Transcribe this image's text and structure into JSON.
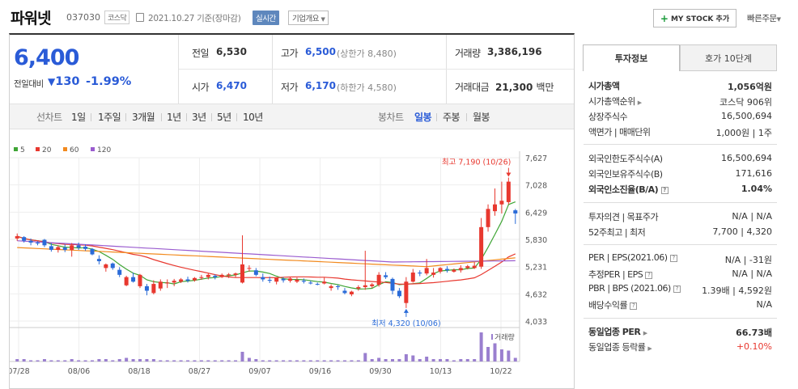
{
  "header": {
    "name": "파워넷",
    "code": "037030",
    "market": "코스닥",
    "date": "2021.10.27 기준(장마감)",
    "realtime_label": "실시간",
    "company_label": "기업개요",
    "mystock_label": "MY STOCK 추가",
    "quick_order_label": "빠른주문"
  },
  "price": {
    "current": "6,400",
    "prev_label": "전일대비",
    "change": "130",
    "change_pct": "-1.99%"
  },
  "quote": {
    "prev_close_label": "전일",
    "prev_close": "6,530",
    "high_label": "고가",
    "high": "6,500",
    "upper_limit": "(상한가 8,480)",
    "volume_label": "거래량",
    "volume": "3,386,196",
    "open_label": "시가",
    "open": "6,470",
    "low_label": "저가",
    "low": "6,170",
    "lower_limit": "(하한가 4,580)",
    "amount_label": "거래대금",
    "amount": "21,300",
    "amount_unit": "백만"
  },
  "tabs": {
    "line_label": "선차트",
    "periods": [
      "1일",
      "1주일",
      "3개월",
      "1년",
      "3년",
      "5년",
      "10년"
    ],
    "candle_label": "봉차트",
    "candles": [
      "일봉",
      "주봉",
      "월봉"
    ],
    "active_candle": "일봉"
  },
  "chart_data": {
    "type": "candlestick",
    "legend": [
      {
        "name": "5",
        "color": "#3fa535"
      },
      {
        "name": "20",
        "color": "#e8382f"
      },
      {
        "name": "60",
        "color": "#f28a1e"
      },
      {
        "name": "120",
        "color": "#9a5ccf"
      }
    ],
    "y_ticks": [
      "7,627",
      "7,028",
      "6,429",
      "5,830",
      "5,231",
      "4,632",
      "4,033"
    ],
    "ylim": [
      4033,
      7627
    ],
    "x_ticks": [
      "07/28",
      "08/06",
      "08/18",
      "08/27",
      "09/07",
      "09/16",
      "09/30",
      "10/13",
      "10/22"
    ],
    "volume_label": "거래량",
    "high_annotation": "최고 7,190 (10/26)",
    "low_annotation": "최저 4,320 (10/06)",
    "candles": [
      [
        5850,
        5960,
        5800,
        5900
      ],
      [
        5880,
        5900,
        5760,
        5800
      ],
      [
        5800,
        5850,
        5700,
        5760
      ],
      [
        5760,
        5790,
        5700,
        5740
      ],
      [
        5820,
        5840,
        5660,
        5700
      ],
      [
        5680,
        5750,
        5560,
        5600
      ],
      [
        5600,
        5700,
        5540,
        5660
      ],
      [
        5650,
        5720,
        5550,
        5600
      ],
      [
        5600,
        5750,
        5450,
        5700
      ],
      [
        5700,
        5760,
        5600,
        5650
      ],
      [
        5670,
        5720,
        5580,
        5620
      ],
      [
        5620,
        5640,
        5480,
        5500
      ],
      [
        5400,
        5480,
        5280,
        5350
      ],
      [
        5200,
        5300,
        5120,
        5280
      ],
      [
        5300,
        5320,
        5160,
        5200
      ],
      [
        5160,
        5220,
        5000,
        5050
      ],
      [
        4820,
        5030,
        4800,
        5000
      ],
      [
        5000,
        5100,
        4880,
        4900
      ],
      [
        4800,
        5070,
        4760,
        5050
      ],
      [
        4800,
        4850,
        4600,
        4700
      ],
      [
        4650,
        4930,
        4620,
        4850
      ],
      [
        4750,
        4950,
        4700,
        4900
      ],
      [
        4860,
        4950,
        4760,
        4880
      ],
      [
        4880,
        4960,
        4800,
        4920
      ],
      [
        4900,
        4980,
        4870,
        4950
      ],
      [
        4950,
        5010,
        4880,
        4920
      ],
      [
        4930,
        5000,
        4900,
        4980
      ],
      [
        4980,
        5050,
        4940,
        5000
      ],
      [
        5000,
        5080,
        4950,
        5050
      ],
      [
        5030,
        5060,
        4950,
        5000
      ],
      [
        5000,
        5080,
        4980,
        5050
      ],
      [
        5040,
        5090,
        4980,
        5060
      ],
      [
        5050,
        5100,
        5000,
        5080
      ],
      [
        4880,
        5920,
        4860,
        5280
      ],
      [
        5200,
        5260,
        5120,
        5200
      ],
      [
        5150,
        5200,
        5020,
        5050
      ],
      [
        5000,
        5080,
        4900,
        4950
      ],
      [
        4940,
        5010,
        4870,
        4920
      ],
      [
        4900,
        4990,
        4840,
        4980
      ],
      [
        4960,
        5000,
        4880,
        4930
      ],
      [
        4920,
        5000,
        4880,
        4970
      ],
      [
        4900,
        4990,
        4870,
        4940
      ],
      [
        4920,
        4970,
        4860,
        4900
      ],
      [
        4880,
        4920,
        4840,
        4860
      ],
      [
        4850,
        4880,
        4820,
        4840
      ],
      [
        4860,
        4990,
        4840,
        4900
      ],
      [
        4760,
        4840,
        4700,
        4800
      ],
      [
        4800,
        4830,
        4720,
        4780
      ],
      [
        4700,
        4760,
        4620,
        4650
      ],
      [
        4620,
        4700,
        4580,
        4680
      ],
      [
        4750,
        4820,
        4700,
        4780
      ],
      [
        4780,
        5580,
        4720,
        4820
      ],
      [
        4800,
        4870,
        4760,
        4840
      ],
      [
        4830,
        5110,
        4790,
        5050
      ],
      [
        5040,
        5110,
        4960,
        5000
      ],
      [
        4960,
        4990,
        4620,
        4700
      ],
      [
        4700,
        4760,
        4540,
        4580
      ],
      [
        4430,
        5000,
        4320,
        4900
      ],
      [
        4900,
        5180,
        4880,
        5100
      ],
      [
        5100,
        5150,
        5020,
        5080
      ],
      [
        5080,
        5400,
        5040,
        5200
      ],
      [
        5050,
        5200,
        4990,
        5100
      ],
      [
        5120,
        5220,
        5080,
        5200
      ],
      [
        5180,
        5240,
        5100,
        5150
      ],
      [
        5120,
        5190,
        5100,
        5160
      ],
      [
        5150,
        5260,
        5100,
        5200
      ],
      [
        5200,
        5270,
        5170,
        5240
      ],
      [
        5200,
        5330,
        5180,
        5250
      ],
      [
        5230,
        6300,
        5180,
        6100
      ],
      [
        6100,
        6600,
        6000,
        6500
      ],
      [
        6450,
        6950,
        6350,
        6600
      ],
      [
        6600,
        7100,
        6400,
        6680
      ],
      [
        6650,
        7190,
        6600,
        7100
      ],
      [
        6470,
        6500,
        6170,
        6400
      ]
    ]
  },
  "side": {
    "tab_invest": "투자정보",
    "tab_hoga": "호가 10단계",
    "rows": {
      "mcap_label": "시가총액",
      "mcap": "1,056억원",
      "mcap_rank_label": "시가총액순위",
      "mcap_rank": "코스닥 906위",
      "shares_label": "상장주식수",
      "shares": "16,500,694",
      "par_label": "액면가 | 매매단위",
      "par": "1,000원 | 1주",
      "foreign_limit_label": "외국인한도주식수(A)",
      "foreign_limit": "16,500,694",
      "foreign_hold_label": "외국인보유주식수(B)",
      "foreign_hold": "171,616",
      "foreign_ratio_label": "외국인소진율(B/A)",
      "foreign_ratio": "1.04%",
      "opinion_label": "투자의견 | 목표주가",
      "opinion": "N/A | N/A",
      "w52_label": "52주최고 | 최저",
      "w52": "7,700 | 4,320",
      "per_label": "PER | EPS(2021.06)",
      "per": "N/A | -31원",
      "est_per_label": "추정PER | EPS",
      "est_per": "N/A | N/A",
      "pbr_label": "PBR | BPS (2021.06)",
      "pbr": "1.39배 | 4,592원",
      "div_label": "배당수익률",
      "div": "N/A",
      "sector_per_label": "동일업종 PER",
      "sector_per": "66.73배",
      "sector_chg_label": "동일업종 등락률",
      "sector_chg": "+0.10%"
    }
  }
}
